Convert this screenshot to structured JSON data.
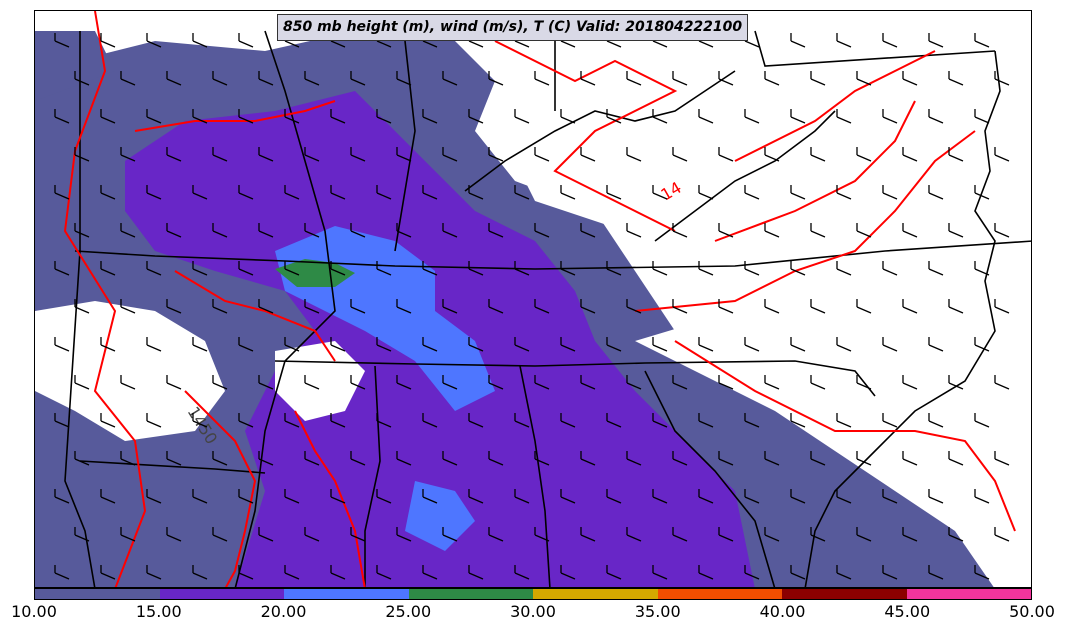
{
  "title": "850 mb height (m), wind (m/s), T (C) Valid: 201804222100",
  "colorbar": {
    "colors": [
      "#575a9b",
      "#6826c7",
      "#4e76ff",
      "#2e8a46",
      "#d4a800",
      "#f24e00",
      "#8c0000",
      "#f2349c"
    ],
    "tick_labels": [
      "10.00",
      "15.00",
      "20.00",
      "25.00",
      "30.00",
      "35.00",
      "40.00",
      "45.00",
      "50.00"
    ]
  },
  "contour_labels": [
    "1450",
    "14"
  ],
  "legend_colors": {
    "contour": "#ff0000",
    "borders": "#000000",
    "background": "#ffffff"
  }
}
